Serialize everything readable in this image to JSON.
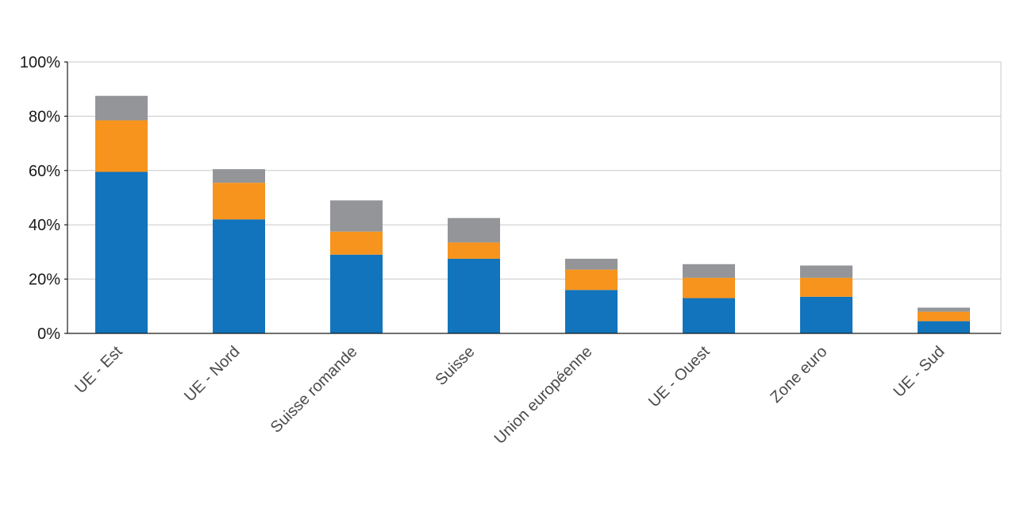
{
  "chart_data": {
    "type": "bar",
    "stacked": true,
    "title": "",
    "xlabel": "",
    "ylabel": "",
    "ylim": [
      0,
      100
    ],
    "y_ticks": [
      "0%",
      "20%",
      "40%",
      "60%",
      "80%",
      "100%"
    ],
    "y_tick_values": [
      0,
      20,
      40,
      60,
      80,
      100
    ],
    "grid": true,
    "legend": "none",
    "categories": [
      "UE - Est",
      "UE - Nord",
      "Suisse romande",
      "Suisse",
      "Union européenne",
      "UE - Ouest",
      "Zone euro",
      "UE - Sud"
    ],
    "series": [
      {
        "color": "#1274bc",
        "values": [
          59.5,
          42,
          29,
          27.5,
          16,
          13,
          13.5,
          4.5
        ]
      },
      {
        "color": "#f7941d",
        "values": [
          19,
          13.5,
          8.5,
          6,
          7.5,
          7.5,
          7,
          3.5
        ]
      },
      {
        "color": "#939598",
        "values": [
          9,
          5,
          11.5,
          9,
          4,
          5,
          4.5,
          1.5
        ]
      }
    ]
  }
}
